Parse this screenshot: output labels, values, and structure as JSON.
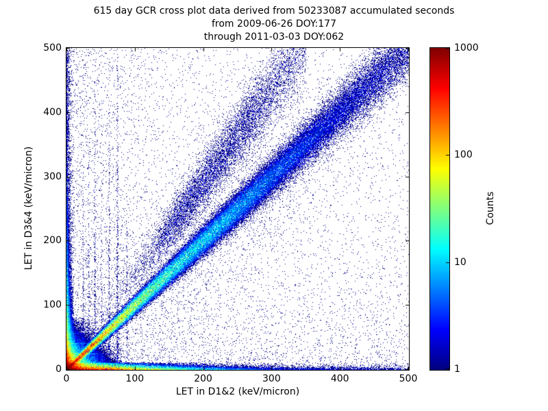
{
  "chart_data": {
    "type": "heatmap",
    "title": "615 day GCR cross plot data derived from 50233087 accumulated seconds",
    "subtitle1": "from 2009-06-26 DOY:177",
    "subtitle2": "through 2011-03-03 DOY:062",
    "n_days": 615,
    "accumulated_seconds": 50233087,
    "date_range": {
      "from": "2009-06-26",
      "from_doy": 177,
      "through": "2011-03-03",
      "through_doy": 62
    },
    "xlabel": "LET in D1&2 (keV/micron)",
    "ylabel": "LET in D3&4 (keV/micron)",
    "xlim": [
      0,
      500
    ],
    "ylim": [
      0,
      500
    ],
    "x_ticks": [
      0,
      100,
      200,
      300,
      400,
      500
    ],
    "y_ticks": [
      0,
      100,
      200,
      300,
      400,
      500
    ],
    "grid": false,
    "colorbar": {
      "label": "Counts",
      "scale": "log",
      "min": 1,
      "max": 1000,
      "ticks": [
        1,
        10,
        100,
        1000
      ],
      "colormap": "jet"
    },
    "features": [
      {
        "kind": "blob",
        "desc": "saturated red hot spot at the origin",
        "peak": 1500,
        "falloff": 7,
        "halo": 120,
        "halo_falloff": 16,
        "extent": 80
      },
      {
        "kind": "ridge",
        "desc": "main detector-coincidence diagonal, LET D1&2 = LET D3&4, red/yellow near origin fading to blue by ~320",
        "slope": 1,
        "length": 500,
        "sigma0": 1.5,
        "sigma_growth": 0.045,
        "amp": [
          [
            0,
            500
          ],
          [
            70,
            60
          ],
          [
            150,
            14
          ],
          [
            250,
            6
          ],
          [
            320,
            3
          ],
          [
            500,
            0.8
          ]
        ]
      },
      {
        "kind": "ridge",
        "desc": "broad diffuse diagonal fan above the main ridge reaching top near x=340",
        "slope": 1.45,
        "length": 350,
        "sigma0": 8,
        "sigma_growth": 0.07,
        "amp": [
          [
            0,
            0.01
          ],
          [
            90,
            0.15
          ],
          [
            160,
            0.85
          ],
          [
            260,
            0.7
          ],
          [
            350,
            0.25
          ]
        ]
      },
      {
        "kind": "band_h",
        "desc": "dense band along the x-axis (y near 0), orange to ~x=100 then fading",
        "height": 2.6,
        "span": 10,
        "amp": [
          [
            0,
            700
          ],
          [
            60,
            260
          ],
          [
            120,
            60
          ],
          [
            200,
            12
          ],
          [
            300,
            3
          ],
          [
            500,
            1.2
          ]
        ]
      },
      {
        "kind": "band_v",
        "desc": "dense band along the y-axis (x near 0) up to top",
        "width": 2.6,
        "span": 10,
        "amp": [
          [
            0,
            380
          ],
          [
            60,
            40
          ],
          [
            150,
            7
          ],
          [
            300,
            2
          ],
          [
            500,
            1
          ]
        ]
      },
      {
        "kind": "streaks",
        "desc": "faint dotted vertical instrumental streaks between x=20 and x=90",
        "items": [
          {
            "x": 24,
            "amp": 0.75,
            "decay": 160,
            "top": 420
          },
          {
            "x": 32,
            "amp": 0.55,
            "decay": 140,
            "top": 360
          },
          {
            "x": 41,
            "amp": 0.7,
            "decay": 180,
            "top": 460
          },
          {
            "x": 51,
            "amp": 0.5,
            "decay": 150,
            "top": 380
          },
          {
            "x": 62,
            "amp": 0.6,
            "decay": 220,
            "top": 480
          },
          {
            "x": 74,
            "amp": 0.8,
            "decay": 260,
            "top": 500
          },
          {
            "x": 88,
            "amp": 0.4,
            "decay": 150,
            "top": 300
          }
        ]
      },
      {
        "kind": "scatter",
        "desc": "diffuse single-count background, denser toward left, bottom and around the diagonal",
        "uniform": 3800,
        "left": 1700,
        "left_mean": 80,
        "bottom": 1700,
        "bottom_mean": 70,
        "diag": 2000,
        "diag_len": 380,
        "diag_sigma": 45
      }
    ]
  }
}
